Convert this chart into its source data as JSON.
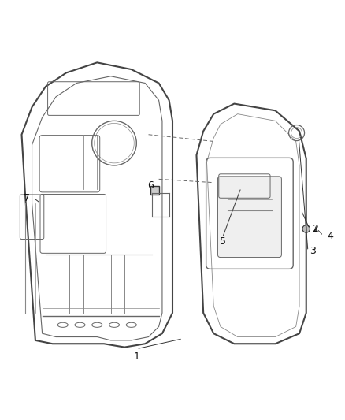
{
  "background_color": "#ffffff",
  "fig_width": 4.38,
  "fig_height": 5.33,
  "dpi": 100,
  "line_color": "#444444",
  "line_color2": "#666666",
  "line_color3": "#888888"
}
